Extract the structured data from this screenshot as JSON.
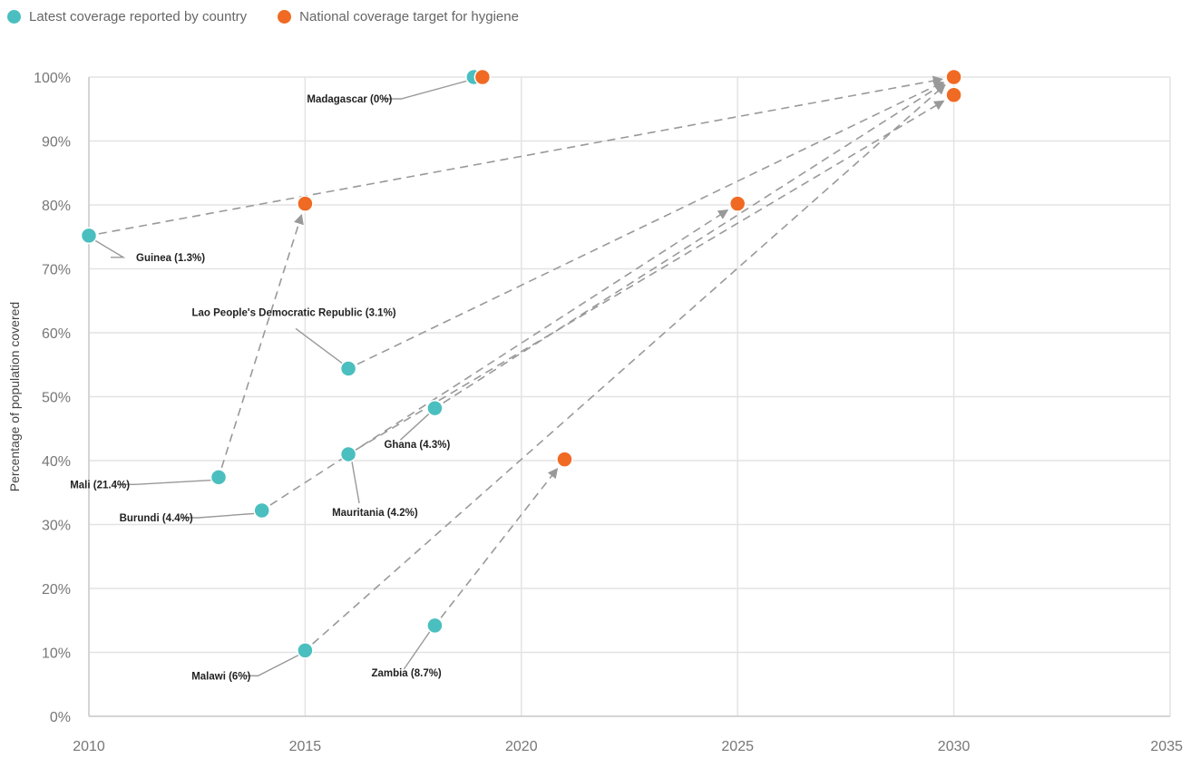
{
  "legend": {
    "actual_label": "Latest coverage reported by country",
    "target_label": "National coverage target for hygiene",
    "actual_color": "#4BBFBF",
    "target_color": "#F06A23"
  },
  "chart_data": {
    "type": "scatter",
    "title": "",
    "xlabel": "",
    "ylabel": "Percentage of population covered",
    "xlim": [
      2010,
      2035
    ],
    "ylim": [
      0,
      100
    ],
    "x_ticks": [
      "2010",
      "2015",
      "2020",
      "2025",
      "2030",
      "2035"
    ],
    "y_ticks": [
      "0%",
      "10%",
      "20%",
      "30%",
      "40%",
      "50%",
      "60%",
      "70%",
      "80%",
      "90%",
      "100%"
    ],
    "grid": true,
    "legend_position": "top-left",
    "series": [
      {
        "name": "Latest coverage reported by country",
        "color": "#4BBFBF",
        "points": [
          {
            "x": 2018.9,
            "y": 100
          },
          {
            "x": 2010,
            "y": 75.2
          },
          {
            "x": 2016,
            "y": 54.4
          },
          {
            "x": 2018,
            "y": 48.2
          },
          {
            "x": 2016,
            "y": 41
          },
          {
            "x": 2013,
            "y": 37.4
          },
          {
            "x": 2014,
            "y": 32.2
          },
          {
            "x": 2015,
            "y": 10.3
          },
          {
            "x": 2018,
            "y": 14.2
          }
        ]
      },
      {
        "name": "National coverage target for hygiene",
        "color": "#F06A23",
        "points": [
          {
            "x": 2019.1,
            "y": 100
          },
          {
            "x": 2015,
            "y": 80.2
          },
          {
            "x": 2025,
            "y": 80.2
          },
          {
            "x": 2030,
            "y": 100
          },
          {
            "x": 2030,
            "y": 97.2
          },
          {
            "x": 2021,
            "y": 40.2
          }
        ]
      }
    ],
    "countries": [
      {
        "label": "Madagascar (0%)",
        "actual": [
          2018.9,
          100
        ],
        "target": [
          2019.1,
          100
        ]
      },
      {
        "label": "Guinea (1.3%)",
        "actual": [
          2010,
          75.2
        ],
        "target": [
          2030,
          100
        ]
      },
      {
        "label": "Lao People's Democratic Republic (3.1%)",
        "actual": [
          2016,
          54.4
        ],
        "target": [
          2030,
          100
        ]
      },
      {
        "label": "Ghana (4.3%)",
        "actual": [
          2018,
          48.2
        ],
        "target": [
          2030,
          100
        ]
      },
      {
        "label": "Mauritania (4.2%)",
        "actual": [
          2016,
          41
        ],
        "target": [
          2030,
          97.2
        ]
      },
      {
        "label": "Mali (21.4%)",
        "actual": [
          2013,
          37.4
        ],
        "target": [
          2015,
          80.2
        ]
      },
      {
        "label": "Burundi (4.4%)",
        "actual": [
          2014,
          32.2
        ],
        "target": [
          2025,
          80.2
        ]
      },
      {
        "label": "Malawi (6%)",
        "actual": [
          2015,
          10.3
        ],
        "target": [
          2030,
          100
        ]
      },
      {
        "label": "Zambia (8.7%)",
        "actual": [
          2018,
          14.2
        ],
        "target": [
          2021,
          40.2
        ]
      }
    ]
  }
}
